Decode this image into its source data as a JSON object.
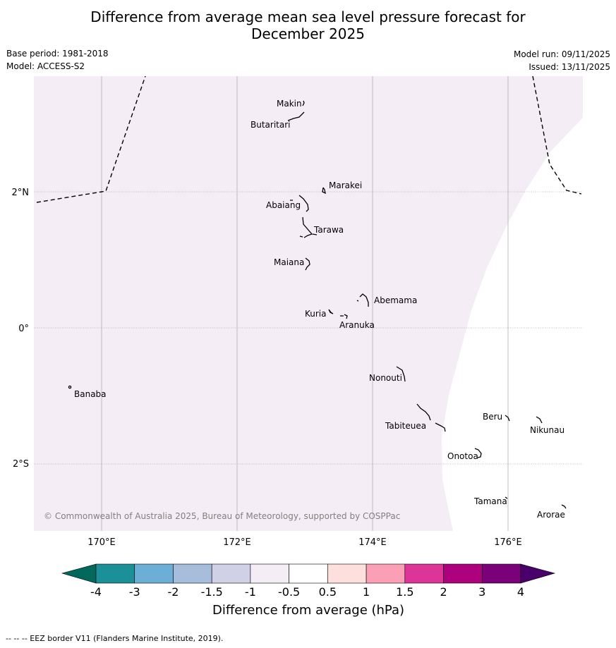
{
  "header": {
    "title_line1": "Difference from average mean sea level pressure forecast for",
    "title_line2": "December 2025",
    "base_period": "Base period: 1981-2018",
    "model": "Model: ACCESS-S2",
    "model_run": "Model run: 09/11/2025",
    "issued": "Issued: 13/11/2025"
  },
  "map": {
    "lon_labels": [
      "170°E",
      "172°E",
      "174°E",
      "176°E"
    ],
    "lat_labels": [
      "2°N",
      "0°",
      "2°S"
    ],
    "shaded_class": "-1 to -0.5",
    "islands": [
      "Makin",
      "Butaritari",
      "Marakei",
      "Abaiang",
      "Tarawa",
      "Maiana",
      "Abemama",
      "Kuria",
      "Aranuka",
      "Nonouti",
      "Banaba",
      "Tabiteuea",
      "Beru",
      "Nikunau",
      "Onotoa",
      "Tamana",
      "Arorae"
    ],
    "copyright": "© Commonwealth of Australia 2025, Bureau of Meteorology, supported by COSPPac"
  },
  "colorbar": {
    "tick_labels": [
      "-4",
      "-3",
      "-2",
      "-1.5",
      "-1",
      "-0.5",
      "0.5",
      "1",
      "1.5",
      "2",
      "3",
      "4"
    ],
    "colors": [
      "#1b9098",
      "#6baed6",
      "#a6bddb",
      "#d0d1e6",
      "#f5edf6",
      "#ffffff",
      "#fde0dd",
      "#fa9fb5",
      "#dd3497",
      "#ae017e",
      "#7a0177"
    ],
    "under_color": "#00695c",
    "over_color": "#49006a",
    "label": "Difference from average (hPa)"
  },
  "footnote": "--  --  -- EEZ border V11 (Flanders Marine Institute, 2019)."
}
